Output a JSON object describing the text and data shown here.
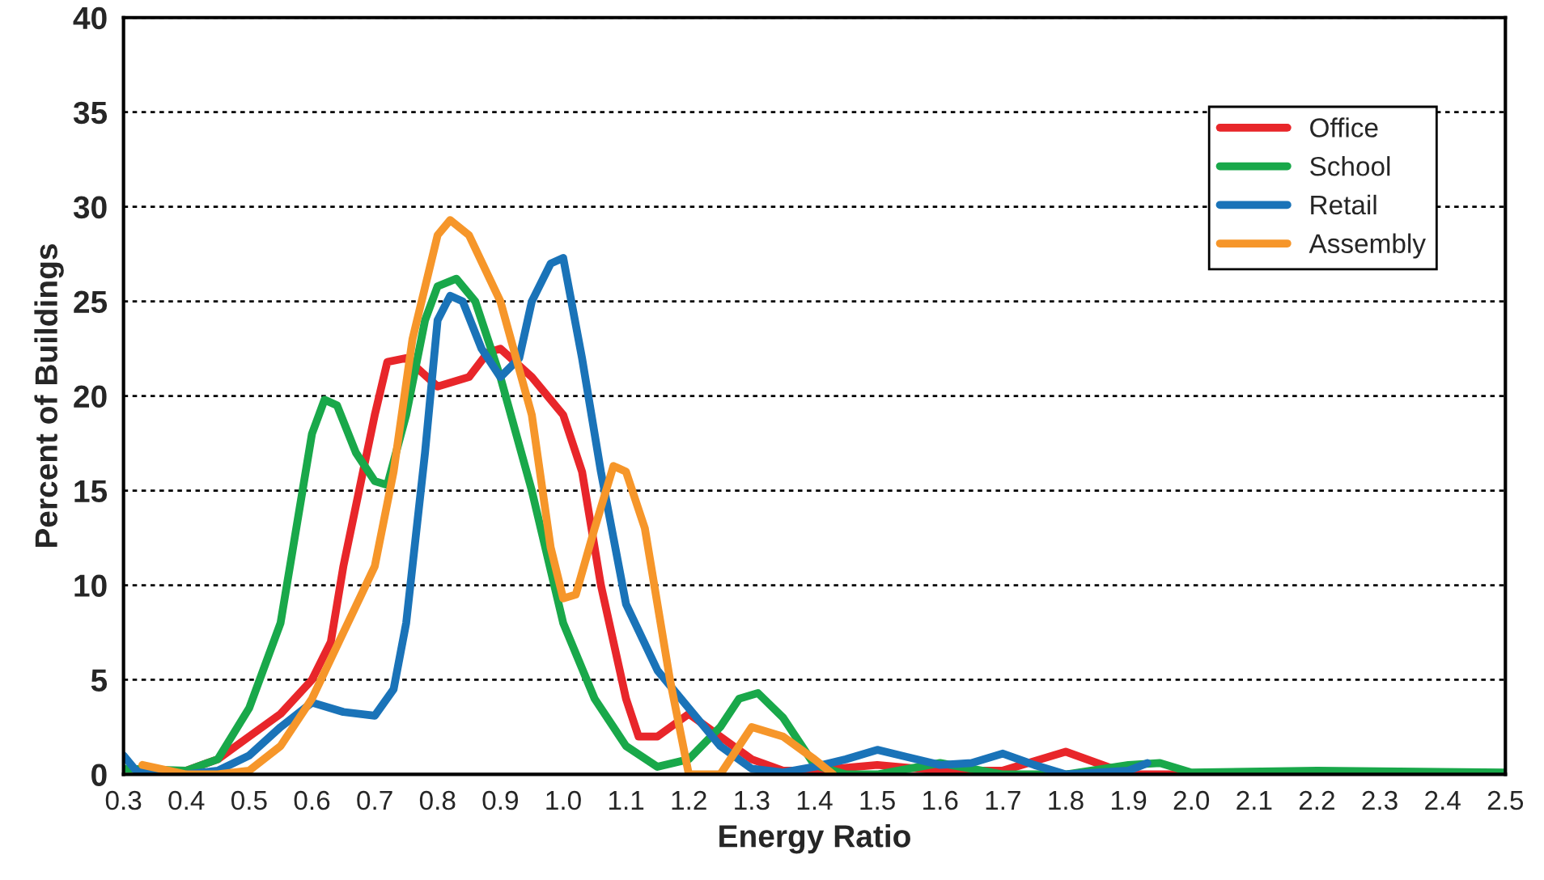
{
  "chart_data": {
    "type": "line",
    "xlabel": "Energy Ratio",
    "ylabel": "Percent of Buildings",
    "xlim": [
      0.3,
      2.5
    ],
    "xticks": [
      0.3,
      0.4,
      0.5,
      0.6,
      0.7,
      0.8,
      0.9,
      {
        "value": 1,
        "label": "1.0"
      },
      1.1,
      1.2,
      1.3,
      1.4,
      1.5,
      1.6,
      1.7,
      1.8,
      1.9,
      {
        "value": 2,
        "label": "2.0"
      },
      2.1,
      2.2,
      2.3,
      2.4,
      2.5
    ],
    "ylim": [
      0,
      40
    ],
    "yticks": [
      0,
      5,
      10,
      15,
      20,
      25,
      30,
      35,
      40
    ],
    "grid": "y",
    "legend": "top right",
    "line_style": "solid",
    "series": [
      {
        "name": "Office",
        "color": "#e8262a",
        "x": [
          0.4,
          0.45,
          0.5,
          0.55,
          0.6,
          0.63,
          0.65,
          0.7,
          0.72,
          0.75,
          0.8,
          0.85,
          0.88,
          0.9,
          0.95,
          1.0,
          1.03,
          1.06,
          1.1,
          1.12,
          1.15,
          1.2,
          1.25,
          1.3,
          1.35,
          1.4,
          1.5,
          1.6,
          1.7,
          1.8,
          1.85,
          1.9,
          2.0
        ],
        "values": [
          0.2,
          0.8,
          2,
          3.2,
          5,
          7,
          11,
          19,
          21.8,
          22,
          20.5,
          21,
          22.3,
          22.5,
          21,
          19,
          16,
          10,
          4,
          2,
          2,
          3.2,
          2,
          0.8,
          0.2,
          0.2,
          0.5,
          0.2,
          0.2,
          1.2,
          0.6,
          0,
          0
        ]
      },
      {
        "name": "School",
        "color": "#19a84a",
        "x": [
          0.3,
          0.4,
          0.45,
          0.5,
          0.55,
          0.57,
          0.6,
          0.62,
          0.64,
          0.67,
          0.7,
          0.72,
          0.75,
          0.78,
          0.8,
          0.83,
          0.86,
          0.9,
          0.95,
          1.0,
          1.05,
          1.1,
          1.15,
          1.2,
          1.25,
          1.28,
          1.31,
          1.35,
          1.4,
          1.45,
          1.5,
          1.6,
          1.7,
          1.8,
          1.9,
          1.95,
          2.0,
          2.2,
          2.5
        ],
        "values": [
          0.3,
          0.2,
          0.8,
          3.5,
          8,
          12,
          18,
          19.8,
          19.5,
          17,
          15.5,
          15.3,
          19,
          24,
          25.8,
          26.2,
          25,
          21,
          15,
          8,
          4,
          1.5,
          0.4,
          0.8,
          2.5,
          4,
          4.3,
          3,
          0.5,
          0,
          0,
          0.6,
          0,
          0,
          0.5,
          0.6,
          0.1,
          0.2,
          0.1
        ]
      },
      {
        "name": "Retail",
        "color": "#1a73b8",
        "x": [
          0.3,
          0.32,
          0.4,
          0.45,
          0.5,
          0.55,
          0.6,
          0.65,
          0.7,
          0.73,
          0.75,
          0.78,
          0.8,
          0.82,
          0.84,
          0.87,
          0.9,
          0.93,
          0.95,
          0.98,
          1.0,
          1.03,
          1.06,
          1.1,
          1.15,
          1.2,
          1.25,
          1.3,
          1.35,
          1.4,
          1.45,
          1.5,
          1.55,
          1.6,
          1.65,
          1.7,
          1.75,
          1.8,
          1.9,
          1.93
        ],
        "values": [
          1,
          0.2,
          0,
          0.2,
          1,
          2.5,
          3.8,
          3.3,
          3.1,
          4.5,
          8,
          17,
          24,
          25.3,
          25,
          22.5,
          21,
          22,
          25,
          27,
          27.3,
          22,
          16,
          9,
          5.5,
          3.5,
          1.5,
          0.3,
          0.1,
          0.4,
          0.8,
          1.3,
          0.9,
          0.5,
          0.6,
          1.1,
          0.5,
          0,
          0.2,
          0.6
        ]
      },
      {
        "name": "Assembly",
        "color": "#f6962a",
        "x": [
          0.33,
          0.4,
          0.45,
          0.5,
          0.55,
          0.6,
          0.65,
          0.7,
          0.73,
          0.76,
          0.8,
          0.82,
          0.85,
          0.9,
          0.95,
          0.98,
          1.0,
          1.02,
          1.05,
          1.08,
          1.1,
          1.13,
          1.17,
          1.2,
          1.25,
          1.3,
          1.35,
          1.4,
          1.43
        ],
        "values": [
          0.5,
          0,
          0,
          0.2,
          1.5,
          4,
          7.5,
          11,
          16,
          23,
          28.5,
          29.3,
          28.5,
          25,
          19,
          12,
          9.3,
          9.5,
          13,
          16.3,
          16,
          13,
          5,
          0,
          0,
          2.5,
          2,
          0.8,
          0
        ]
      }
    ]
  }
}
